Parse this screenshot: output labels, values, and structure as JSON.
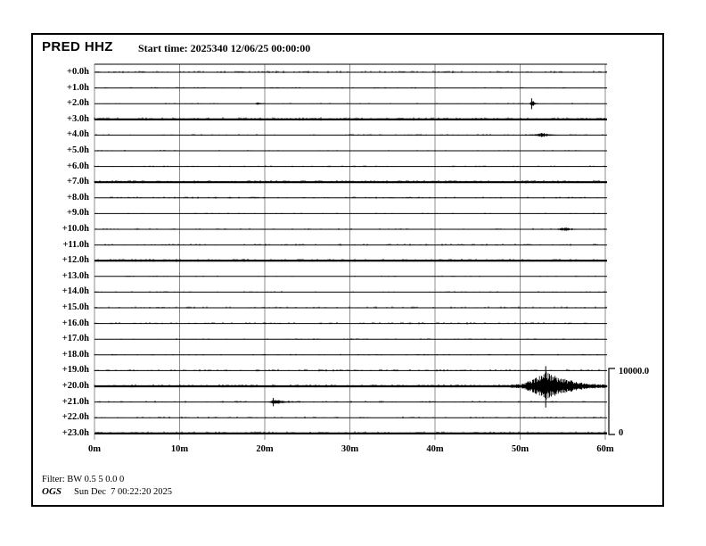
{
  "window": {
    "title_station": "PRED HHZ",
    "start_time_label": "Start time: 2025340 12/06/25 00:00:00"
  },
  "footer": {
    "filter": "Filter: BW 0.5 5 0.0 0",
    "agency": "OGS",
    "generated": "Sun Dec  7 00:22:20 2025"
  },
  "chart_data": {
    "type": "line",
    "subtype": "helicorder-seismogram",
    "station": "PRED",
    "channel": "HHZ",
    "title": "PRED HHZ",
    "start_time": "2025340 12/06/25 00:00:00",
    "row_duration_minutes": 60,
    "grid": true,
    "x_axis": {
      "tick_labels": [
        "0m",
        "10m",
        "20m",
        "30m",
        "40m",
        "50m",
        "60m"
      ],
      "tick_minutes": [
        0,
        10,
        20,
        30,
        40,
        50,
        60
      ]
    },
    "y_axis": {
      "description": "hours after start time, one trace row per hour"
    },
    "amplitude_scale": {
      "max_label": "10000.0",
      "min_label": "0",
      "max_counts": 10000,
      "min_counts": 0
    },
    "rows": [
      {
        "label": "+0.0h",
        "noise": 0.55
      },
      {
        "label": "+1.0h",
        "noise": 0.18
      },
      {
        "label": "+2.0h",
        "noise": 0.14
      },
      {
        "label": "+3.0h",
        "noise": 0.92
      },
      {
        "label": "+4.0h",
        "noise": 0.3
      },
      {
        "label": "+5.0h",
        "noise": 0.14
      },
      {
        "label": "+6.0h",
        "noise": 0.24
      },
      {
        "label": "+7.0h",
        "noise": 0.92
      },
      {
        "label": "+8.0h",
        "noise": 0.42
      },
      {
        "label": "+9.0h",
        "noise": 0.1
      },
      {
        "label": "+10.0h",
        "noise": 0.26
      },
      {
        "label": "+11.0h",
        "noise": 0.42
      },
      {
        "label": "+12.0h",
        "noise": 0.88
      },
      {
        "label": "+13.0h",
        "noise": 0.1
      },
      {
        "label": "+14.0h",
        "noise": 0.18
      },
      {
        "label": "+15.0h",
        "noise": 0.48
      },
      {
        "label": "+16.0h",
        "noise": 0.48
      },
      {
        "label": "+17.0h",
        "noise": 0.14
      },
      {
        "label": "+18.0h",
        "noise": 0.18
      },
      {
        "label": "+19.0h",
        "noise": 0.5
      },
      {
        "label": "+20.0h",
        "noise": 0.85
      },
      {
        "label": "+21.0h",
        "noise": 0.38
      },
      {
        "label": "+22.0h",
        "noise": 0.32
      },
      {
        "label": "+23.0h",
        "noise": 0.88
      }
    ],
    "events": [
      {
        "hour": 2,
        "start_minute": 51.0,
        "peak_minute": 51.35,
        "end_minute": 52.1,
        "peak_amplitude_counts": 650,
        "spike_amplitude_counts": 800,
        "size": "small spike"
      },
      {
        "hour": 2,
        "start_minute": 18.7,
        "peak_minute": 19.2,
        "end_minute": 20.0,
        "peak_amplitude_counts": 280,
        "size": "tiny burst"
      },
      {
        "hour": 4,
        "start_minute": 50.2,
        "peak_minute": 52.6,
        "end_minute": 54.8,
        "peak_amplitude_counts": 360,
        "size": "small burst"
      },
      {
        "hour": 10,
        "start_minute": 53.5,
        "peak_minute": 55.4,
        "end_minute": 57.0,
        "peak_amplitude_counts": 360,
        "size": "small burst"
      },
      {
        "hour": 20,
        "start_minute": 48.9,
        "peak_minute": 53.0,
        "end_minute": 60.5,
        "peak_amplitude_counts": 2300,
        "spike_amplitude_counts": 3050,
        "coda_floor": 0.13,
        "size": "largest event on record section"
      },
      {
        "hour": 21,
        "start_minute": 20.4,
        "peak_minute": 21.0,
        "end_minute": 24.7,
        "peak_amplitude_counts": 400,
        "spike_amplitude_counts": 620,
        "size": "small burst"
      }
    ],
    "colors": {
      "trace": "#000000",
      "grid": "#8e8e8e",
      "border": "#000000",
      "background": "#ffffff"
    }
  }
}
